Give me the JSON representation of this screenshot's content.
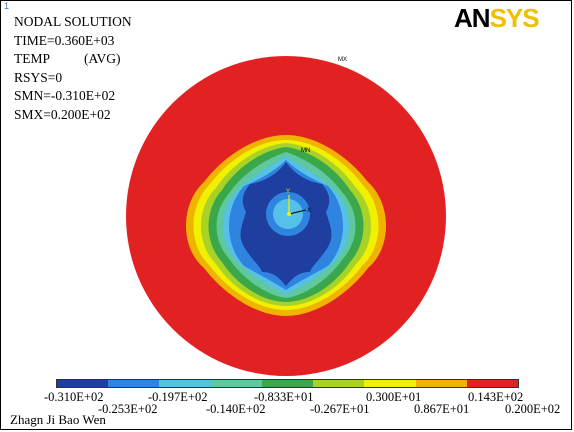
{
  "window_number": "1",
  "info": {
    "title": "NODAL SOLUTION",
    "time": "TIME=0.360E+03",
    "temp": "TEMP",
    "avg": "(AVG)",
    "rsys": "RSYS=0",
    "smn": "SMN=-0.310E+02",
    "smx": "SMX=0.200E+02"
  },
  "logo": {
    "part1": "AN",
    "part2": "SYS"
  },
  "markers": {
    "mx": "MX",
    "mn": "MN",
    "axis_y": "Y",
    "axis_x": "X"
  },
  "legend": {
    "colors": [
      "#1f3fa0",
      "#2f84e0",
      "#55c0e8",
      "#5fc8a0",
      "#3aa84a",
      "#a8d228",
      "#f0f000",
      "#f0b400",
      "#e22222"
    ],
    "labels_top": [
      "-0.310E+02",
      "-0.197E+02",
      "-0.833E+01",
      "0.300E+01",
      "0.143E+02"
    ],
    "labels_bottom": [
      "-0.253E+02",
      "-0.140E+02",
      "-0.267E+01",
      "0.867E+01",
      "0.200E+02"
    ]
  },
  "footer": "Zhagn Ji Bao Wen"
}
